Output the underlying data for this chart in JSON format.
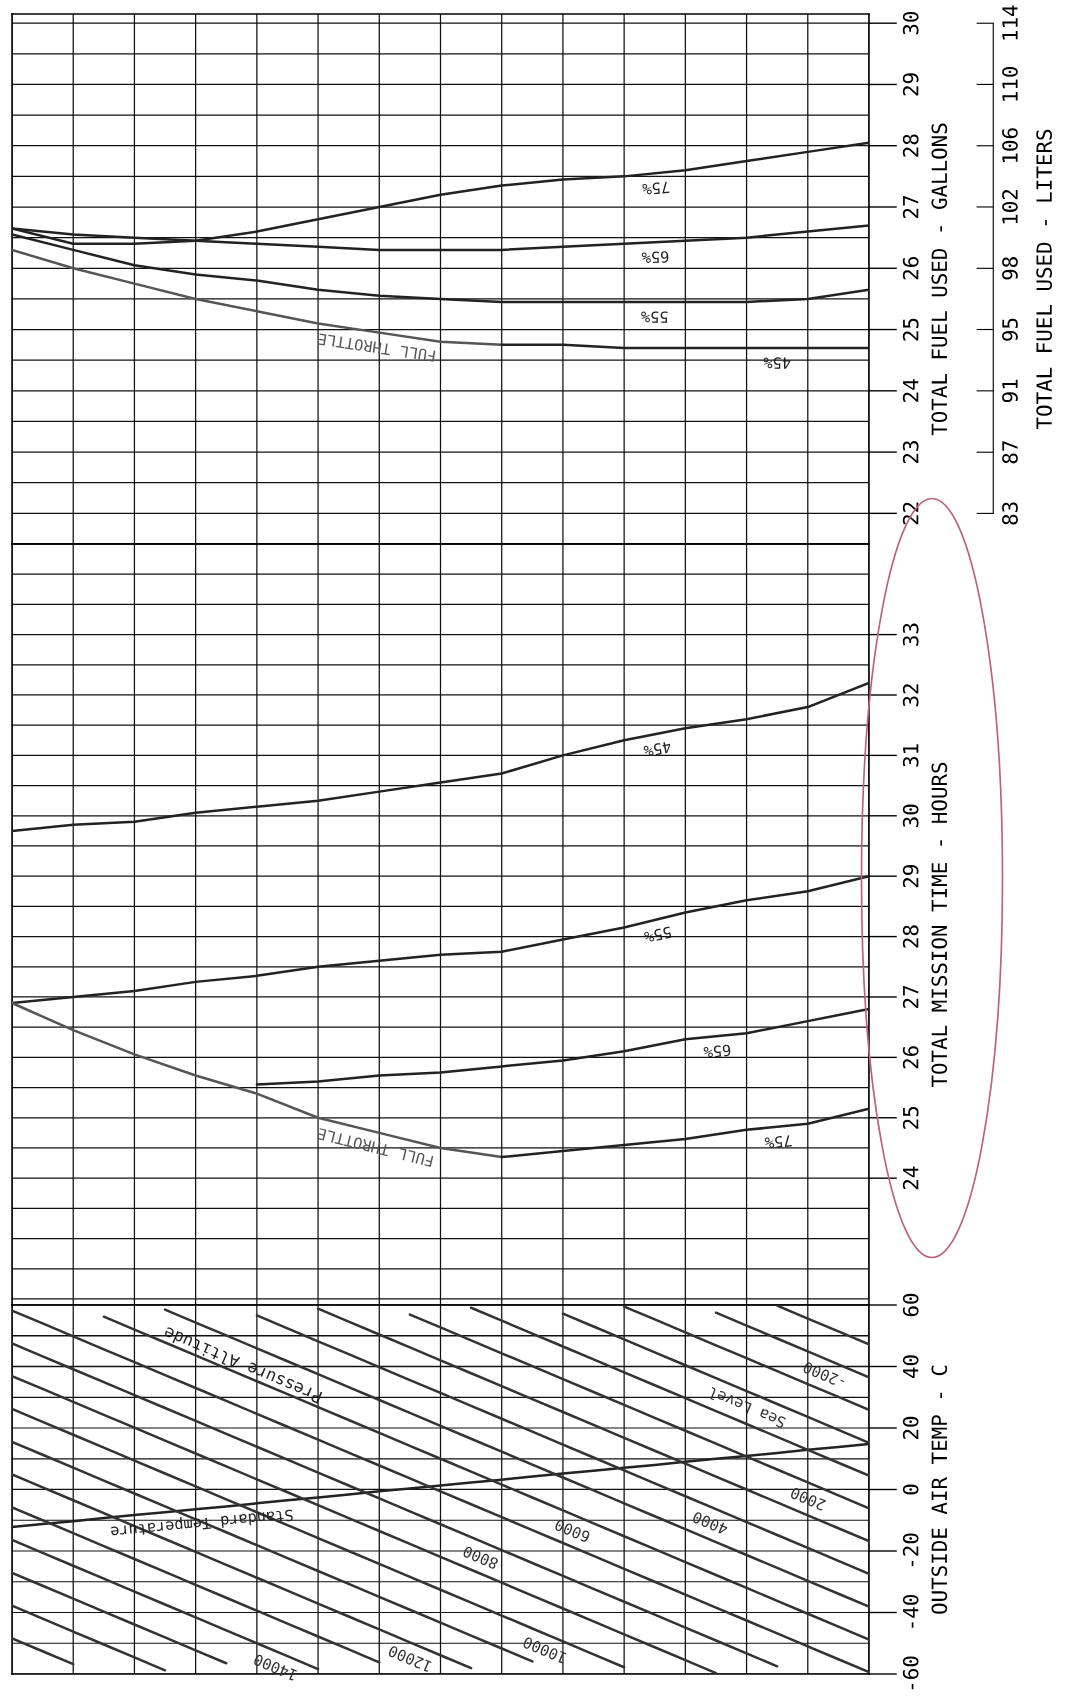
{
  "chart_data": [
    {
      "type": "line",
      "ylabel": "TOTAL FUEL USED - GALLONS",
      "y2label": "TOTAL FUEL USED - LITERS",
      "categories": [
        null,
        null,
        null,
        null,
        null,
        null,
        null,
        null,
        null,
        null,
        null,
        null,
        null,
        null,
        null
      ],
      "ylim": [
        21.5,
        30.15
      ],
      "yticks": [
        {
          "value": 21.5,
          "label": null
        },
        22,
        {
          "value": 22.5,
          "label": null
        },
        23,
        {
          "value": 23.5,
          "label": null
        },
        24,
        {
          "value": 24.5,
          "label": null
        },
        25,
        {
          "value": 25.5,
          "label": null
        },
        26,
        {
          "value": 26.5,
          "label": null
        },
        27,
        {
          "value": 27.5,
          "label": null
        },
        28,
        {
          "value": 28.5,
          "label": null
        },
        29,
        {
          "value": 29.5,
          "label": null
        },
        30
      ],
      "y2lim": [
        81.39,
        114.13
      ],
      "y2ticks": [
        {
          "value": 83.28,
          "label": "83"
        },
        {
          "value": 87.06,
          "label": "87"
        },
        {
          "value": 90.85,
          "label": "91"
        },
        {
          "value": 94.64,
          "label": "95"
        },
        {
          "value": 98.42,
          "label": "98"
        },
        {
          "value": 102.21,
          "label": "102"
        },
        {
          "value": 105.99,
          "label": "106"
        },
        {
          "value": 109.78,
          "label": "110"
        },
        {
          "value": 113.56,
          "label": "114"
        }
      ],
      "grid": true,
      "legend": false,
      "series": [
        {
          "name": "FULL THROTTLE",
          "color": "#555555",
          "values": [
            26.3,
            26.0,
            25.75,
            25.5,
            25.3,
            25.1,
            24.95,
            24.8,
            24.75,
            null,
            null,
            null,
            null,
            null,
            null
          ]
        },
        {
          "name": "45%",
          "color": "#222222",
          "values": [
            null,
            null,
            null,
            null,
            null,
            null,
            null,
            null,
            24.75,
            24.75,
            24.7,
            24.7,
            24.7,
            24.7,
            24.7
          ]
        },
        {
          "name": "55%",
          "color": "#222222",
          "values": [
            26.55,
            26.3,
            26.05,
            25.9,
            25.8,
            25.65,
            25.55,
            25.5,
            25.45,
            25.45,
            25.45,
            25.45,
            25.45,
            25.5,
            25.65
          ]
        },
        {
          "name": "65%",
          "color": "#222222",
          "values": [
            26.65,
            26.55,
            26.5,
            26.45,
            26.4,
            26.35,
            26.3,
            26.3,
            26.3,
            26.35,
            26.4,
            26.45,
            26.5,
            26.6,
            26.7
          ]
        },
        {
          "name": "75%",
          "color": "#222222",
          "values": [
            26.65,
            26.4,
            26.4,
            26.45,
            26.6,
            26.8,
            27.0,
            27.2,
            27.35,
            27.45,
            27.5,
            27.6,
            27.75,
            27.9,
            28.05
          ]
        }
      ]
    },
    {
      "type": "line",
      "ylabel": "TOTAL MISSION TIME - HOURS",
      "categories": [
        null,
        null,
        null,
        null,
        null,
        null,
        null,
        null,
        null,
        null,
        null,
        null,
        null,
        null,
        null
      ],
      "ylim": [
        21.9,
        34.5
      ],
      "yticks": [
        {
          "value": 22,
          "label": null
        },
        {
          "value": 22.5,
          "label": null
        },
        {
          "value": 23,
          "label": null
        },
        {
          "value": 23.5,
          "label": null
        },
        24,
        {
          "value": 24.5,
          "label": null
        },
        25,
        {
          "value": 25.5,
          "label": null
        },
        26,
        {
          "value": 26.5,
          "label": null
        },
        27,
        {
          "value": 27.5,
          "label": null
        },
        28,
        {
          "value": 28.5,
          "label": null
        },
        29,
        {
          "value": 29.5,
          "label": null
        },
        30,
        {
          "value": 30.5,
          "label": null
        },
        31,
        {
          "value": 31.5,
          "label": null
        },
        32,
        {
          "value": 32.5,
          "label": null
        },
        33,
        {
          "value": 33.5,
          "label": null
        },
        {
          "value": 34,
          "label": null
        },
        {
          "value": 34.5,
          "label": null
        }
      ],
      "grid": true,
      "legend": false,
      "series": [
        {
          "name": "45%",
          "color": "#222222",
          "values": [
            29.75,
            29.85,
            29.9,
            30.05,
            30.15,
            30.25,
            30.4,
            30.55,
            30.7,
            31.0,
            31.25,
            31.45,
            31.6,
            31.8,
            32.2
          ]
        },
        {
          "name": "55%",
          "color": "#222222",
          "values": [
            26.9,
            27.0,
            27.1,
            27.25,
            27.35,
            27.5,
            27.6,
            27.7,
            27.75,
            27.95,
            28.15,
            28.4,
            28.6,
            28.75,
            29.0
          ]
        },
        {
          "name": "FULL THROTTLE",
          "color": "#555555",
          "values": [
            26.9,
            26.45,
            26.05,
            25.7,
            25.4,
            25.0,
            24.75,
            24.5,
            24.35,
            null,
            null,
            null,
            null,
            null,
            null
          ]
        },
        {
          "name": "65%",
          "color": "#222222",
          "values": [
            null,
            null,
            null,
            null,
            25.55,
            25.6,
            25.7,
            25.75,
            25.85,
            25.95,
            26.1,
            26.3,
            26.4,
            26.6,
            26.8
          ]
        },
        {
          "name": "75%",
          "color": "#222222",
          "values": [
            null,
            null,
            null,
            null,
            null,
            null,
            null,
            null,
            24.35,
            24.45,
            24.55,
            24.65,
            24.8,
            24.9,
            25.15
          ]
        }
      ]
    },
    {
      "type": "line",
      "ylabel": "OUTSIDE AIR TEMP - C",
      "annotations": [
        "Pressure Altitude"
      ],
      "categories": [
        null,
        null,
        null,
        null,
        null,
        null,
        null,
        null,
        null,
        null,
        null,
        null,
        null,
        null,
        null,
        null,
        null,
        null,
        null,
        null,
        null,
        null,
        null,
        null,
        null,
        null,
        null,
        null,
        null
      ],
      "ylim": [
        -60,
        60
      ],
      "yticks": [
        -60,
        {
          "value": -50,
          "label": null
        },
        -40,
        {
          "value": -30,
          "label": null
        },
        -20,
        {
          "value": -10,
          "label": null
        },
        0,
        {
          "value": 10,
          "label": null
        },
        20,
        {
          "value": 30,
          "label": null
        },
        40,
        {
          "value": 50,
          "label": null
        },
        60
      ],
      "grid": true,
      "legend": false,
      "series": [
        {
          "name": "Standard Temperature",
          "color": "#222222",
          "values": [
            -12.2,
            -11.2,
            -10.3,
            -9.3,
            -8.3,
            -7.4,
            -6.4,
            -5.5,
            -4.5,
            -3.5,
            -2.6,
            -1.6,
            -0.6,
            0.3,
            1.3,
            2.3,
            3.2,
            4.2,
            5.2,
            6.1,
            7.1,
            8.0,
            9.0,
            10.0,
            10.9,
            11.9,
            12.9,
            13.8,
            14.8
          ]
        },
        {
          "color": "#333333",
          "values": [
            null,
            null,
            null,
            null,
            null,
            null,
            null,
            null,
            null,
            null,
            null,
            null,
            null,
            null,
            null,
            null,
            null,
            null,
            null,
            null,
            null,
            null,
            null,
            null,
            null,
            59.8,
            55.6,
            51.4,
            47.2
          ]
        },
        {
          "name": "-2000",
          "color": "#333333",
          "values": [
            null,
            null,
            null,
            null,
            null,
            null,
            null,
            null,
            null,
            null,
            null,
            null,
            null,
            null,
            null,
            null,
            null,
            null,
            null,
            null,
            null,
            null,
            null,
            57.5,
            53.3,
            49.1,
            44.9,
            40.7,
            36.5
          ]
        },
        {
          "color": "#333333",
          "values": [
            null,
            null,
            null,
            null,
            null,
            null,
            null,
            null,
            null,
            null,
            null,
            null,
            null,
            null,
            null,
            null,
            null,
            null,
            null,
            null,
            59.5,
            55.3,
            51.1,
            46.9,
            42.7,
            38.5,
            34.3,
            30.1,
            25.9
          ]
        },
        {
          "name": "Sea Level",
          "color": "#333333",
          "values": [
            null,
            null,
            null,
            null,
            null,
            null,
            null,
            null,
            null,
            null,
            null,
            null,
            null,
            null,
            null,
            null,
            null,
            null,
            57.2,
            53.0,
            48.8,
            44.6,
            40.4,
            36.2,
            32.0,
            27.8,
            23.6,
            19.4,
            15.2
          ]
        },
        {
          "color": "#333333",
          "values": [
            null,
            null,
            null,
            null,
            null,
            null,
            null,
            null,
            null,
            null,
            null,
            null,
            null,
            null,
            null,
            59.1,
            54.9,
            50.7,
            46.5,
            42.3,
            38.1,
            33.9,
            29.7,
            25.5,
            21.3,
            17.1,
            12.9,
            8.7,
            4.5
          ]
        },
        {
          "name": "2000",
          "color": "#333333",
          "values": [
            null,
            null,
            null,
            null,
            null,
            null,
            null,
            null,
            null,
            null,
            null,
            null,
            null,
            56.9,
            52.7,
            48.5,
            44.3,
            40.1,
            35.9,
            31.7,
            27.5,
            23.3,
            19.1,
            14.9,
            10.7,
            6.5,
            2.3,
            -1.9,
            -6.1
          ]
        },
        {
          "color": "#333333",
          "values": [
            null,
            null,
            null,
            null,
            null,
            null,
            null,
            null,
            null,
            null,
            58.8,
            54.6,
            50.4,
            46.2,
            42.0,
            37.8,
            33.6,
            29.4,
            25.2,
            21.0,
            16.8,
            12.6,
            8.4,
            4.2,
            0,
            -4.2,
            -8.4,
            -12.6,
            -16.8
          ]
        },
        {
          "name": "4000",
          "color": "#333333",
          "values": [
            null,
            null,
            null,
            null,
            null,
            null,
            null,
            null,
            56.6,
            52.4,
            48.2,
            44.0,
            39.8,
            35.6,
            31.4,
            27.2,
            23.0,
            18.8,
            14.6,
            10.4,
            6.2,
            2.0,
            -2.2,
            -6.4,
            -10.6,
            -14.8,
            -19.0,
            -23.2,
            -27.4
          ]
        },
        {
          "color": "#333333",
          "values": [
            null,
            null,
            null,
            null,
            null,
            58.5,
            54.3,
            50.1,
            45.9,
            41.7,
            37.5,
            33.3,
            29.1,
            24.9,
            20.7,
            16.5,
            12.3,
            8.1,
            3.9,
            -0.3,
            -4.5,
            -8.7,
            -12.9,
            -17.1,
            -21.3,
            -25.5,
            -29.7,
            -33.9,
            -38.1
          ]
        },
        {
          "name": "6000",
          "color": "#333333",
          "values": [
            null,
            null,
            null,
            56.2,
            52.0,
            47.8,
            43.6,
            39.4,
            35.2,
            31.0,
            26.8,
            22.6,
            18.4,
            14.2,
            10.0,
            5.8,
            1.6,
            -2.6,
            -6.8,
            -11.0,
            -15.2,
            -19.4,
            -23.6,
            -27.8,
            -32.0,
            -36.2,
            -40.4,
            -44.6,
            -48.8
          ]
        },
        {
          "color": "#333333",
          "values": [
            58.2,
            54.0,
            49.8,
            45.6,
            41.4,
            37.2,
            33.0,
            28.8,
            24.6,
            20.4,
            16.2,
            12.0,
            7.8,
            3.6,
            -0.6,
            -4.8,
            -9.0,
            -13.2,
            -17.4,
            -21.6,
            -25.8,
            -30.0,
            -34.2,
            -38.4,
            -42.6,
            -46.8,
            -51.0,
            -55.2,
            -59.4
          ]
        },
        {
          "name": "8000",
          "color": "#333333",
          "values": [
            47.5,
            43.3,
            39.1,
            34.9,
            30.7,
            26.5,
            22.3,
            18.1,
            13.9,
            9.7,
            5.5,
            1.3,
            -2.9,
            -7.1,
            -11.3,
            -15.5,
            -19.7,
            -23.9,
            -28.1,
            -32.3,
            -36.5,
            -40.7,
            -44.9,
            -49.1,
            -53.3,
            -57.5,
            null,
            null,
            null
          ]
        },
        {
          "color": "#333333",
          "values": [
            36.9,
            32.7,
            28.5,
            24.3,
            20.1,
            15.9,
            11.7,
            7.5,
            3.3,
            -0.9,
            -5.1,
            -9.3,
            -13.5,
            -17.7,
            -21.9,
            -26.1,
            -30.3,
            -34.5,
            -38.7,
            -42.9,
            -47.1,
            -51.3,
            -55.5,
            -59.7,
            null,
            null,
            null,
            null,
            null
          ]
        },
        {
          "name": "10000",
          "color": "#333333",
          "values": [
            26.2,
            22.0,
            17.8,
            13.6,
            9.4,
            5.2,
            1.0,
            -3.2,
            -7.4,
            -11.6,
            -15.8,
            -20.0,
            -24.2,
            -28.4,
            -32.6,
            -36.8,
            -41.0,
            -45.2,
            -49.4,
            -53.6,
            -57.8,
            null,
            null,
            null,
            null,
            null,
            null,
            null,
            null
          ]
        },
        {
          "color": "#333333",
          "values": [
            15.5,
            11.3,
            7.1,
            2.9,
            -1.3,
            -5.5,
            -9.7,
            -13.9,
            -18.1,
            -22.3,
            -26.5,
            -30.7,
            -34.9,
            -39.1,
            -43.3,
            -47.5,
            -51.7,
            -55.9,
            null,
            null,
            null,
            null,
            null,
            null,
            null,
            null,
            null,
            null,
            null
          ]
        },
        {
          "name": "12000",
          "color": "#333333",
          "values": [
            4.9,
            0.7,
            -3.5,
            -7.7,
            -11.9,
            -16.1,
            -20.3,
            -24.5,
            -28.7,
            -32.9,
            -37.1,
            -41.3,
            -45.5,
            -49.7,
            -53.9,
            -58.1,
            null,
            null,
            null,
            null,
            null,
            null,
            null,
            null,
            null,
            null,
            null,
            null,
            null
          ]
        },
        {
          "color": "#333333",
          "values": [
            -5.8,
            -10.0,
            -14.2,
            -18.4,
            -22.6,
            -26.8,
            -31.0,
            -35.2,
            -39.4,
            -43.6,
            -47.8,
            -52.0,
            -56.2,
            null,
            null,
            null,
            null,
            null,
            null,
            null,
            null,
            null,
            null,
            null,
            null,
            null,
            null,
            null,
            null
          ]
        },
        {
          "name": "14000",
          "color": "#333333",
          "values": [
            -16.4,
            -20.6,
            -24.8,
            -29.0,
            -33.2,
            -37.4,
            -41.6,
            -45.8,
            -50.0,
            -54.2,
            -58.4,
            null,
            null,
            null,
            null,
            null,
            null,
            null,
            null,
            null,
            null,
            null,
            null,
            null,
            null,
            null,
            null,
            null,
            null
          ]
        },
        {
          "color": "#333333",
          "values": [
            -27.1,
            -31.3,
            -35.5,
            -39.7,
            -43.9,
            -48.1,
            -52.3,
            -56.5,
            null,
            null,
            null,
            null,
            null,
            null,
            null,
            null,
            null,
            null,
            null,
            null,
            null,
            null,
            null,
            null,
            null,
            null,
            null,
            null,
            null
          ]
        },
        {
          "color": "#333333",
          "values": [
            -37.8,
            -42.0,
            -46.2,
            -50.4,
            -54.6,
            -58.8,
            null,
            null,
            null,
            null,
            null,
            null,
            null,
            null,
            null,
            null,
            null,
            null,
            null,
            null,
            null,
            null,
            null,
            null,
            null,
            null,
            null,
            null,
            null
          ]
        },
        {
          "color": "#333333",
          "values": [
            -48.4,
            -52.6,
            -56.8,
            null,
            null,
            null,
            null,
            null,
            null,
            null,
            null,
            null,
            null,
            null,
            null,
            null,
            null,
            null,
            null,
            null,
            null,
            null,
            null,
            null,
            null,
            null,
            null,
            null,
            null
          ]
        }
      ]
    }
  ]
}
